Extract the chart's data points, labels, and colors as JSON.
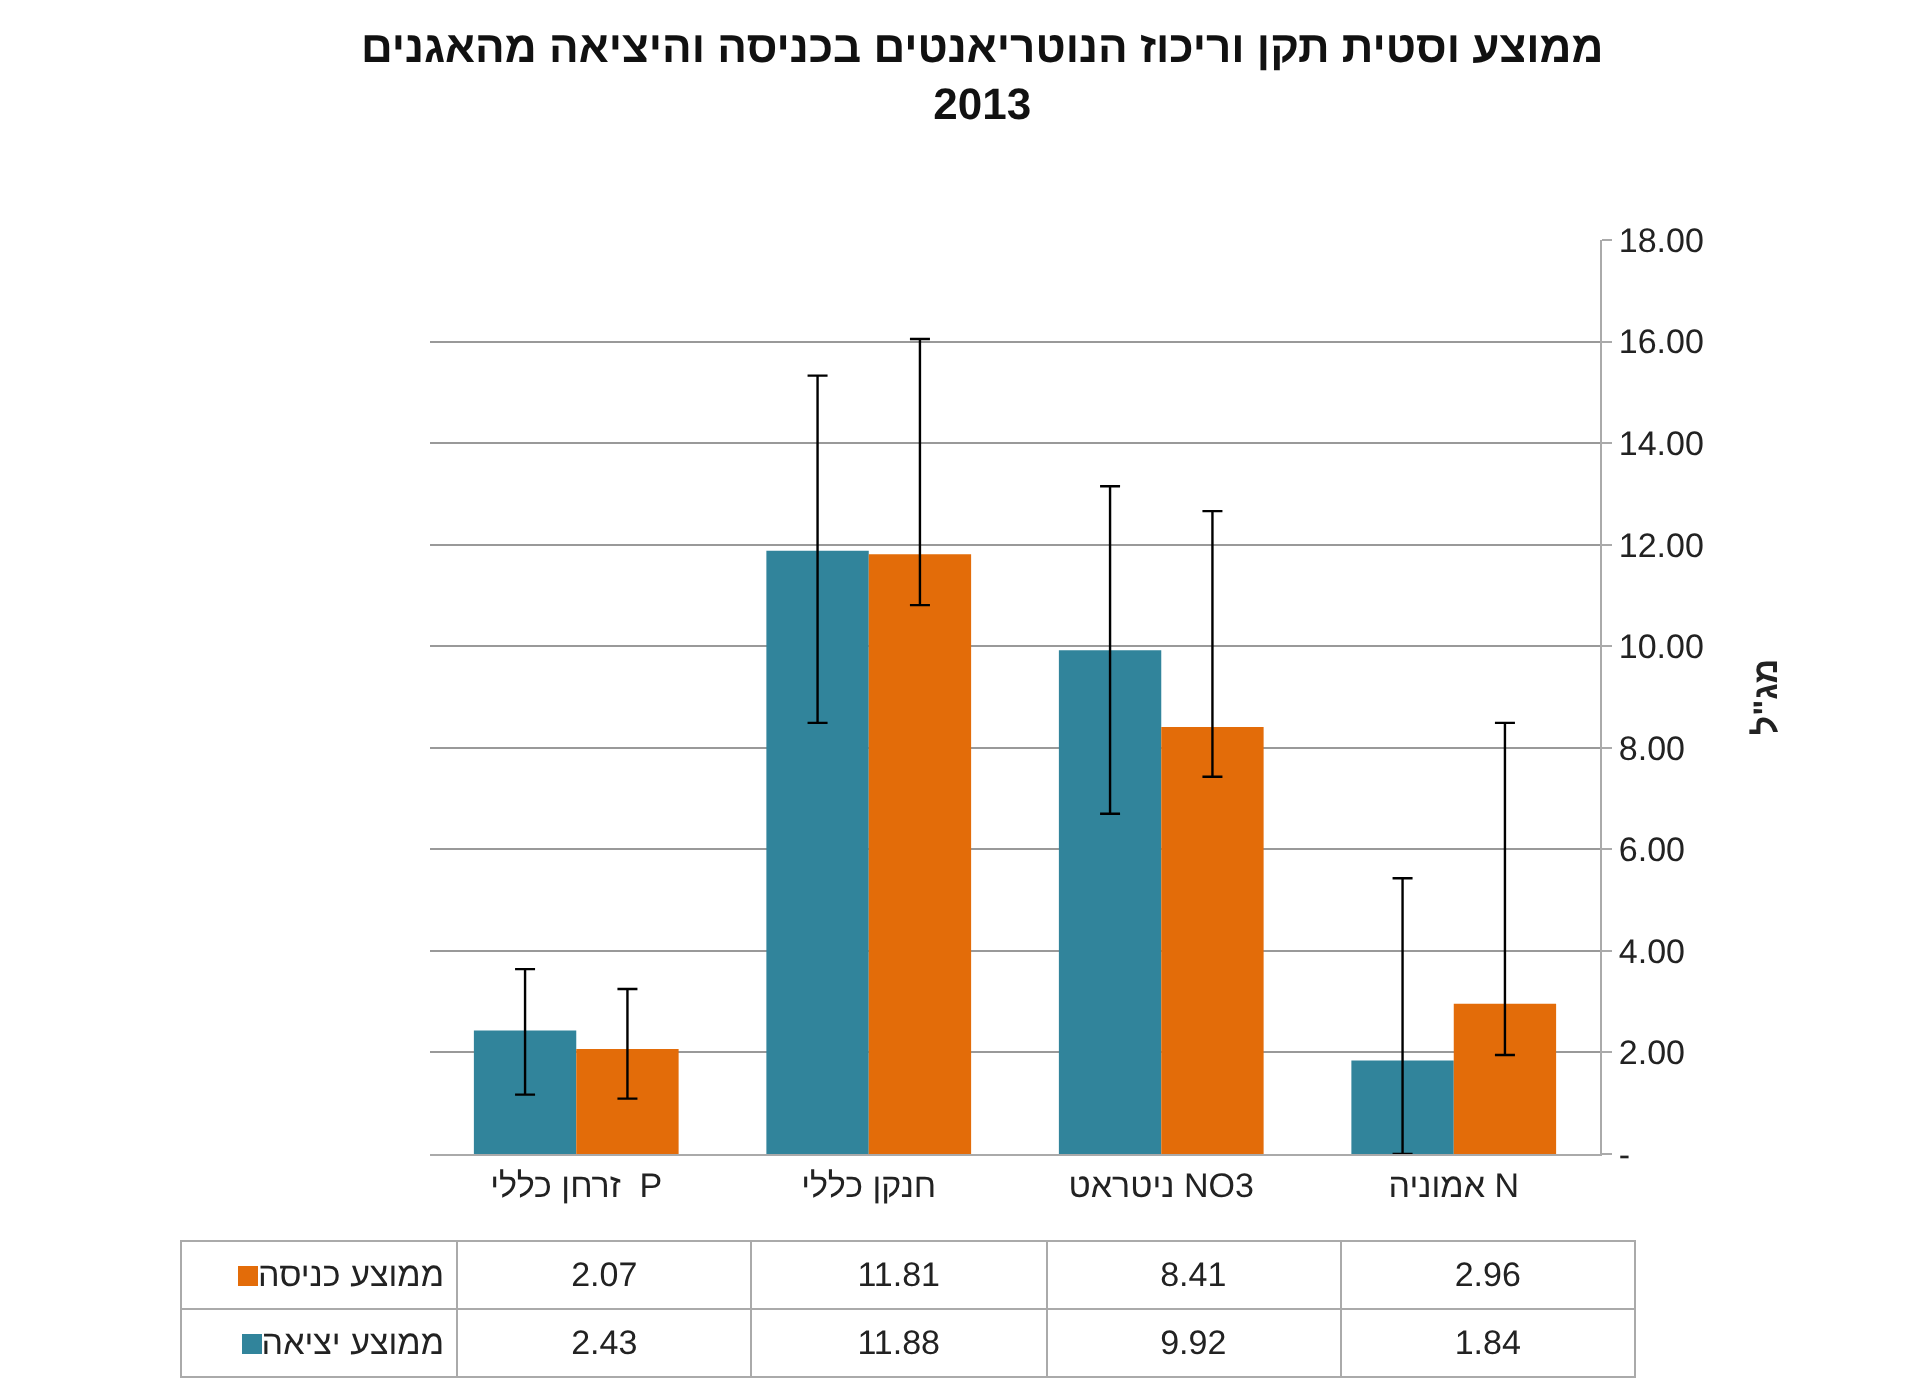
{
  "chart_data": {
    "type": "bar",
    "title": "ממוצע וסטית תקן וריכוז הנוטריאנטים בכניסה והיציאה מהאגנים\n2013",
    "ylabel": "מג\"ל",
    "categories": [
      "P  זרחן כללי",
      "חנקן כללי",
      "NO3 ניטראט",
      "N אמוניה"
    ],
    "series": [
      {
        "name": "ממוצע יציאה",
        "color": "#31849b",
        "values": [
          2.43,
          11.88,
          9.92,
          1.84
        ],
        "errors": [
          [
            1.17,
            3.64
          ],
          [
            8.49,
            15.33
          ],
          [
            6.7,
            13.15
          ],
          [
            0,
            5.43
          ]
        ]
      },
      {
        "name": "ממוצע כניסה",
        "color": "#e36c09",
        "values": [
          2.07,
          11.81,
          8.41,
          2.96
        ],
        "errors": [
          [
            1.09,
            3.25
          ],
          [
            10.81,
            16.05
          ],
          [
            7.43,
            12.66
          ],
          [
            1.95,
            8.49
          ]
        ]
      }
    ],
    "ylim": [
      0,
      18
    ],
    "yticks": [
      {
        "value": 0,
        "label": "-"
      },
      {
        "value": 2,
        "label": "2.00"
      },
      {
        "value": 4,
        "label": "4.00"
      },
      {
        "value": 6,
        "label": "6.00"
      },
      {
        "value": 8,
        "label": "8.00"
      },
      {
        "value": 10,
        "label": "10.00"
      },
      {
        "value": 12,
        "label": "12.00"
      },
      {
        "value": 14,
        "label": "14.00"
      },
      {
        "value": 16,
        "label": "16.00"
      },
      {
        "value": 18,
        "label": "18.00"
      }
    ],
    "grid": "y",
    "data_labels": true,
    "legend": "bottom left"
  }
}
